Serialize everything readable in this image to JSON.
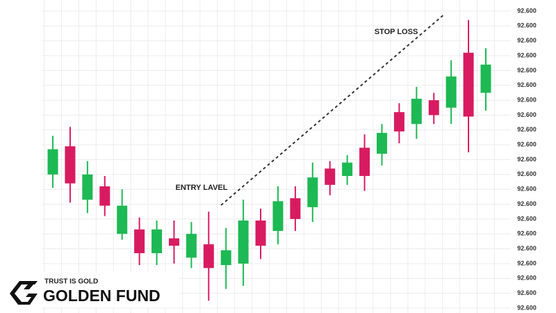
{
  "chart_data": {
    "type": "candlestick",
    "annotations": [
      "ENTRY LAVEL",
      "STOP LOSS"
    ],
    "open": [
      9.0,
      10.9,
      7.3,
      8.2,
      5.0,
      5.3,
      3.7,
      4.7,
      3.4,
      4.3,
      2.9,
      3.0,
      5.9,
      5.2,
      7.4,
      6.8,
      9.4,
      8.9,
      10.8,
      10.4,
      13.2,
      12.4,
      14.0,
      13.5,
      17.2,
      14.5
    ],
    "high": [
      11.6,
      12.2,
      9.9,
      8.9,
      8.0,
      6.1,
      5.9,
      5.9,
      5.8,
      6.5,
      5.4,
      7.3,
      6.7,
      8.2,
      8.2,
      9.8,
      9.9,
      10.3,
      11.7,
      12.4,
      13.8,
      14.9,
      14.5,
      16.7,
      19.4,
      17.5
    ],
    "low": [
      8.1,
      7.1,
      6.4,
      6.2,
      4.6,
      2.9,
      2.9,
      3.0,
      2.7,
      0.5,
      1.3,
      1.5,
      3.3,
      4.3,
      5.2,
      5.8,
      7.6,
      8.3,
      7.9,
      9.6,
      11.1,
      11.4,
      12.4,
      12.4,
      10.5,
      13.3
    ],
    "close": [
      10.7,
      8.4,
      9.0,
      6.9,
      6.9,
      3.7,
      5.3,
      4.2,
      5.0,
      2.7,
      3.9,
      5.9,
      4.2,
      7.2,
      6.0,
      8.8,
      8.3,
      9.8,
      8.9,
      11.8,
      11.9,
      14.1,
      13.0,
      15.6,
      12.9,
      16.4
    ],
    "up_color": "#1db954",
    "down_color": "#d81b60",
    "ylim": [
      0,
      20
    ],
    "yticks": [
      {
        "value": 20,
        "label": "92.600"
      },
      {
        "value": 19,
        "label": "92.600"
      },
      {
        "value": 18,
        "label": "92.600"
      },
      {
        "value": 17,
        "label": "92.600"
      },
      {
        "value": 16,
        "label": "92.600"
      },
      {
        "value": 15,
        "label": "92.600"
      },
      {
        "value": 14,
        "label": "92.600"
      },
      {
        "value": 13,
        "label": "92.600"
      },
      {
        "value": 12,
        "label": "92.600"
      },
      {
        "value": 11,
        "label": "92.600"
      },
      {
        "value": 10,
        "label": "92.600"
      },
      {
        "value": 9,
        "label": "92.600"
      },
      {
        "value": 8,
        "label": "92.600"
      },
      {
        "value": 7,
        "label": "92.600"
      },
      {
        "value": 6,
        "label": "92.600"
      },
      {
        "value": 5,
        "label": "92.600"
      },
      {
        "value": 4,
        "label": "92.600"
      },
      {
        "value": 3,
        "label": "92.600"
      },
      {
        "value": 2,
        "label": "92.600"
      },
      {
        "value": 1,
        "label": "92.600"
      },
      {
        "value": 0,
        "label": "92.600"
      }
    ],
    "grid": true
  },
  "logo": {
    "tagline": "TRUST IS GOLD",
    "name": "GOLDEN FUND"
  }
}
